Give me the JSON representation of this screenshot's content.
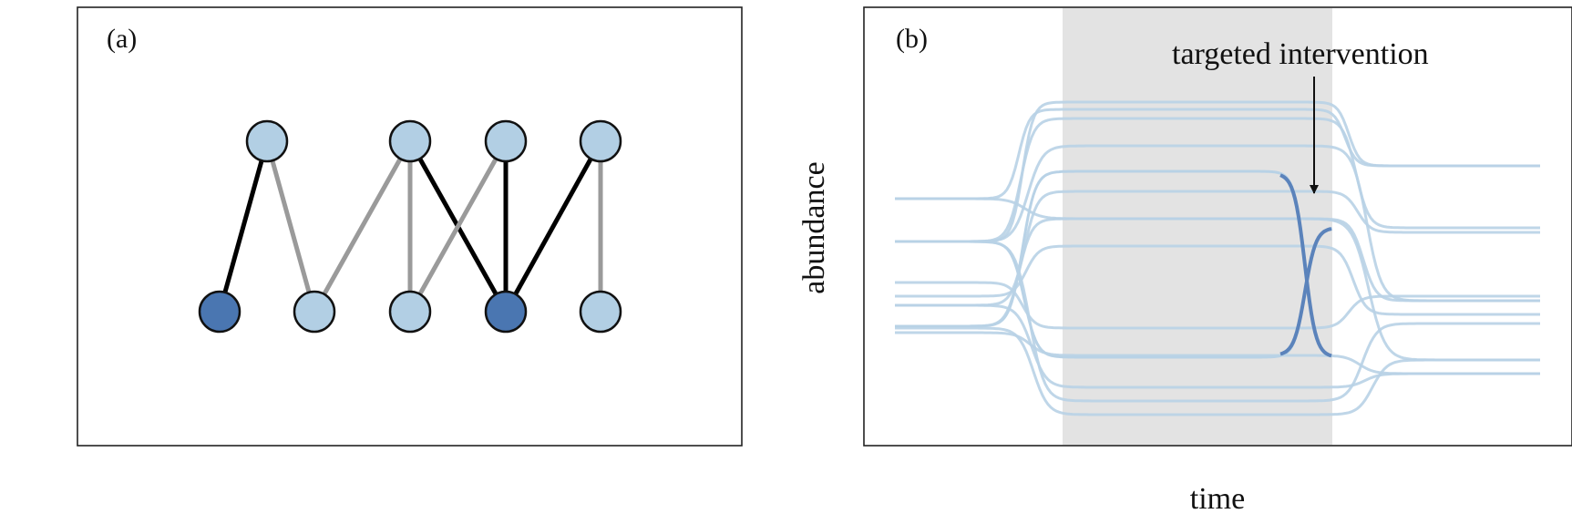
{
  "panel_a": {
    "label": "(a)",
    "top_nodes": 4,
    "bottom_nodes": 5,
    "colors": {
      "light_node": "#b2cfe4",
      "dark_node": "#4a76b1",
      "strong_edge": "#000000",
      "weak_edge": "#9a9a9a"
    },
    "edges": [
      {
        "from": "top1",
        "to": "bottom1",
        "kind": "strong"
      },
      {
        "from": "top1",
        "to": "bottom2",
        "kind": "weak"
      },
      {
        "from": "top2",
        "to": "bottom2",
        "kind": "weak"
      },
      {
        "from": "top2",
        "to": "bottom3",
        "kind": "weak"
      },
      {
        "from": "top2",
        "to": "bottom4",
        "kind": "strong"
      },
      {
        "from": "top3",
        "to": "bottom3",
        "kind": "weak"
      },
      {
        "from": "top3",
        "to": "bottom4",
        "kind": "strong"
      },
      {
        "from": "top4",
        "to": "bottom4",
        "kind": "strong"
      },
      {
        "from": "top4",
        "to": "bottom5",
        "kind": "weak"
      }
    ],
    "dark_nodes": [
      "bottom1",
      "bottom4"
    ]
  },
  "panel_b": {
    "label": "(b)",
    "annotation": "targeted intervention",
    "xlabel": "time",
    "ylabel": "abundance",
    "colors": {
      "shade": "#e3e3e3",
      "light_line": "#b8d2e6",
      "dark_line": "#5b83bb"
    }
  }
}
